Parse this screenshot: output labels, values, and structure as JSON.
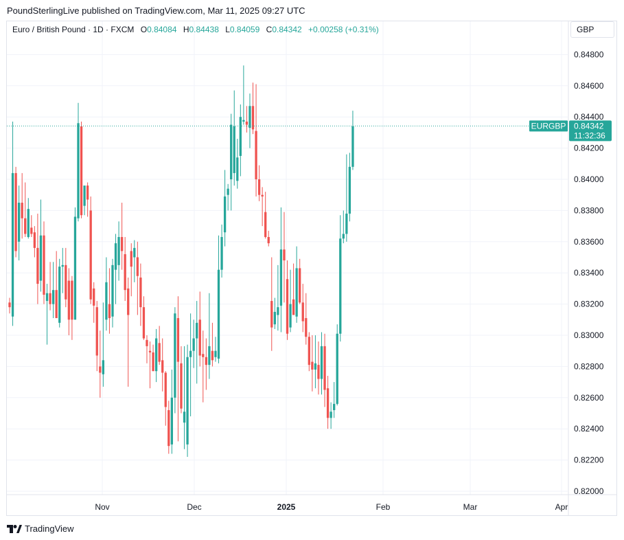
{
  "header": {
    "publisher": "PoundSterlingLive published on TradingView.com, Mar 11, 2025 09:27 UTC"
  },
  "legend": {
    "symbol": "Euro / British Pound · 1D · FXCM",
    "open_label": "O",
    "open": "0.84084",
    "high_label": "H",
    "high": "0.84438",
    "low_label": "L",
    "low": "0.84059",
    "close_label": "C",
    "close": "0.84342",
    "change": "+0.00258 (+0.31%)"
  },
  "currency_button": "GBP",
  "price_tag": {
    "symbol": "EURGBP",
    "price": "0.84342",
    "countdown": "11:32:36"
  },
  "branding": {
    "name": "TradingView",
    "logo_icon": "tradingview-logo-icon"
  },
  "colors": {
    "up": "#26a69a",
    "down": "#ef5350",
    "grid": "#f0f3fa",
    "text": "#131722"
  },
  "chart_data": {
    "type": "candlestick",
    "title": "Euro / British Pound · 1D · FXCM",
    "y_axis_side": "right",
    "ylim": [
      0.8195,
      0.8495
    ],
    "y_ticks": [
      "0.84800",
      "0.84600",
      "0.84400",
      "0.84200",
      "0.84000",
      "0.83800",
      "0.83600",
      "0.83400",
      "0.83200",
      "0.83000",
      "0.82800",
      "0.82600",
      "0.82400",
      "0.82200",
      "0.82000"
    ],
    "x_ticks": [
      {
        "label": "Nov",
        "bold": false
      },
      {
        "label": "Dec",
        "bold": false
      },
      {
        "label": "2025",
        "bold": true
      },
      {
        "label": "Feb",
        "bold": false
      },
      {
        "label": "Mar",
        "bold": false
      },
      {
        "label": "Apr",
        "bold": false
      }
    ],
    "last_price": 0.84342,
    "candles": [
      {
        "o": 0.8321,
        "h": 0.8324,
        "l": 0.8314,
        "c": 0.8318
      },
      {
        "o": 0.8312,
        "h": 0.8437,
        "l": 0.8306,
        "c": 0.8404
      },
      {
        "o": 0.8404,
        "h": 0.8408,
        "l": 0.835,
        "c": 0.8354
      },
      {
        "o": 0.836,
        "h": 0.8396,
        "l": 0.8348,
        "c": 0.8385
      },
      {
        "o": 0.8385,
        "h": 0.8404,
        "l": 0.8362,
        "c": 0.8375
      },
      {
        "o": 0.8375,
        "h": 0.8398,
        "l": 0.8363,
        "c": 0.8365
      },
      {
        "o": 0.8363,
        "h": 0.8388,
        "l": 0.8362,
        "c": 0.8381
      },
      {
        "o": 0.8369,
        "h": 0.8377,
        "l": 0.8363,
        "c": 0.8365
      },
      {
        "o": 0.8366,
        "h": 0.837,
        "l": 0.835,
        "c": 0.8356
      },
      {
        "o": 0.8356,
        "h": 0.8378,
        "l": 0.832,
        "c": 0.8333
      },
      {
        "o": 0.8335,
        "h": 0.8387,
        "l": 0.8328,
        "c": 0.8364
      },
      {
        "o": 0.8364,
        "h": 0.8373,
        "l": 0.832,
        "c": 0.8326
      },
      {
        "o": 0.8322,
        "h": 0.8333,
        "l": 0.8294,
        "c": 0.8327
      },
      {
        "o": 0.8327,
        "h": 0.8347,
        "l": 0.8316,
        "c": 0.832
      },
      {
        "o": 0.832,
        "h": 0.8347,
        "l": 0.8311,
        "c": 0.8329
      },
      {
        "o": 0.8329,
        "h": 0.8354,
        "l": 0.8311,
        "c": 0.8311
      },
      {
        "o": 0.8308,
        "h": 0.8349,
        "l": 0.8305,
        "c": 0.8344
      },
      {
        "o": 0.8344,
        "h": 0.8356,
        "l": 0.8327,
        "c": 0.8345
      },
      {
        "o": 0.8345,
        "h": 0.8356,
        "l": 0.8318,
        "c": 0.8323
      },
      {
        "o": 0.8335,
        "h": 0.8343,
        "l": 0.83,
        "c": 0.831
      },
      {
        "o": 0.8335,
        "h": 0.8338,
        "l": 0.8297,
        "c": 0.831
      },
      {
        "o": 0.831,
        "h": 0.8382,
        "l": 0.831,
        "c": 0.8376
      },
      {
        "o": 0.8375,
        "h": 0.8449,
        "l": 0.8373,
        "c": 0.8436
      },
      {
        "o": 0.8434,
        "h": 0.8437,
        "l": 0.8375,
        "c": 0.8377
      },
      {
        "o": 0.8383,
        "h": 0.8393,
        "l": 0.8377,
        "c": 0.8396
      },
      {
        "o": 0.8396,
        "h": 0.8398,
        "l": 0.8376,
        "c": 0.8387
      },
      {
        "o": 0.838,
        "h": 0.8389,
        "l": 0.832,
        "c": 0.8323
      },
      {
        "o": 0.833,
        "h": 0.8334,
        "l": 0.8308,
        "c": 0.8319
      },
      {
        "o": 0.8318,
        "h": 0.8322,
        "l": 0.8277,
        "c": 0.8287
      },
      {
        "o": 0.828,
        "h": 0.8303,
        "l": 0.826,
        "c": 0.8276
      },
      {
        "o": 0.8275,
        "h": 0.8321,
        "l": 0.8267,
        "c": 0.8284
      },
      {
        "o": 0.831,
        "h": 0.835,
        "l": 0.8303,
        "c": 0.8334
      },
      {
        "o": 0.832,
        "h": 0.8343,
        "l": 0.8301,
        "c": 0.8311
      },
      {
        "o": 0.8312,
        "h": 0.8349,
        "l": 0.8305,
        "c": 0.8345
      },
      {
        "o": 0.8342,
        "h": 0.8365,
        "l": 0.832,
        "c": 0.8359
      },
      {
        "o": 0.8345,
        "h": 0.8373,
        "l": 0.8335,
        "c": 0.8363
      },
      {
        "o": 0.8363,
        "h": 0.8385,
        "l": 0.8342,
        "c": 0.8354
      },
      {
        "o": 0.8352,
        "h": 0.8363,
        "l": 0.8322,
        "c": 0.8329
      },
      {
        "o": 0.833,
        "h": 0.8337,
        "l": 0.8267,
        "c": 0.8313
      },
      {
        "o": 0.8354,
        "h": 0.8359,
        "l": 0.8325,
        "c": 0.8344
      },
      {
        "o": 0.835,
        "h": 0.8361,
        "l": 0.8334,
        "c": 0.8356
      },
      {
        "o": 0.835,
        "h": 0.836,
        "l": 0.8313,
        "c": 0.8338
      },
      {
        "o": 0.8337,
        "h": 0.8346,
        "l": 0.8306,
        "c": 0.8318
      },
      {
        "o": 0.8318,
        "h": 0.8325,
        "l": 0.8297,
        "c": 0.8298
      },
      {
        "o": 0.8297,
        "h": 0.83,
        "l": 0.8282,
        "c": 0.8293
      },
      {
        "o": 0.829,
        "h": 0.8296,
        "l": 0.8266,
        "c": 0.8289
      },
      {
        "o": 0.8289,
        "h": 0.8294,
        "l": 0.8277,
        "c": 0.8277
      },
      {
        "o": 0.8277,
        "h": 0.8304,
        "l": 0.827,
        "c": 0.8298
      },
      {
        "o": 0.8295,
        "h": 0.8306,
        "l": 0.8281,
        "c": 0.8283
      },
      {
        "o": 0.8284,
        "h": 0.8298,
        "l": 0.8264,
        "c": 0.8276
      },
      {
        "o": 0.8276,
        "h": 0.8277,
        "l": 0.8242,
        "c": 0.8254
      },
      {
        "o": 0.8252,
        "h": 0.8258,
        "l": 0.8224,
        "c": 0.8229
      },
      {
        "o": 0.823,
        "h": 0.8278,
        "l": 0.8224,
        "c": 0.826
      },
      {
        "o": 0.826,
        "h": 0.8318,
        "l": 0.825,
        "c": 0.8314
      },
      {
        "o": 0.8311,
        "h": 0.8325,
        "l": 0.8232,
        "c": 0.8283
      },
      {
        "o": 0.8282,
        "h": 0.8293,
        "l": 0.825,
        "c": 0.8253
      },
      {
        "o": 0.8244,
        "h": 0.8293,
        "l": 0.8227,
        "c": 0.8251
      },
      {
        "o": 0.823,
        "h": 0.8294,
        "l": 0.8222,
        "c": 0.8286
      },
      {
        "o": 0.8286,
        "h": 0.8314,
        "l": 0.8248,
        "c": 0.829
      },
      {
        "o": 0.829,
        "h": 0.831,
        "l": 0.8279,
        "c": 0.8298
      },
      {
        "o": 0.8298,
        "h": 0.8322,
        "l": 0.8269,
        "c": 0.8308
      },
      {
        "o": 0.831,
        "h": 0.8328,
        "l": 0.828,
        "c": 0.8287
      },
      {
        "o": 0.8288,
        "h": 0.8303,
        "l": 0.8257,
        "c": 0.8286
      },
      {
        "o": 0.8286,
        "h": 0.8298,
        "l": 0.8265,
        "c": 0.8281
      },
      {
        "o": 0.8281,
        "h": 0.8327,
        "l": 0.8272,
        "c": 0.8293
      },
      {
        "o": 0.829,
        "h": 0.8308,
        "l": 0.828,
        "c": 0.8284
      },
      {
        "o": 0.8286,
        "h": 0.8299,
        "l": 0.8283,
        "c": 0.829
      },
      {
        "o": 0.8285,
        "h": 0.8364,
        "l": 0.8282,
        "c": 0.8342
      },
      {
        "o": 0.8342,
        "h": 0.8371,
        "l": 0.8337,
        "c": 0.8363
      },
      {
        "o": 0.8366,
        "h": 0.8406,
        "l": 0.8357,
        "c": 0.8389
      },
      {
        "o": 0.839,
        "h": 0.8397,
        "l": 0.838,
        "c": 0.8394
      },
      {
        "o": 0.84,
        "h": 0.8442,
        "l": 0.838,
        "c": 0.8435
      },
      {
        "o": 0.8404,
        "h": 0.8457,
        "l": 0.8396,
        "c": 0.8434
      },
      {
        "o": 0.8399,
        "h": 0.8426,
        "l": 0.8394,
        "c": 0.8414
      },
      {
        "o": 0.8415,
        "h": 0.8448,
        "l": 0.8402,
        "c": 0.844
      },
      {
        "o": 0.8437,
        "h": 0.8473,
        "l": 0.8435,
        "c": 0.8438
      },
      {
        "o": 0.8437,
        "h": 0.8447,
        "l": 0.843,
        "c": 0.8435
      },
      {
        "o": 0.8433,
        "h": 0.8455,
        "l": 0.842,
        "c": 0.8447
      },
      {
        "o": 0.8447,
        "h": 0.8462,
        "l": 0.8429,
        "c": 0.8432
      },
      {
        "o": 0.8431,
        "h": 0.8461,
        "l": 0.8389,
        "c": 0.84
      },
      {
        "o": 0.84,
        "h": 0.8409,
        "l": 0.8386,
        "c": 0.839
      },
      {
        "o": 0.839,
        "h": 0.8395,
        "l": 0.837,
        "c": 0.8389
      },
      {
        "o": 0.8379,
        "h": 0.8392,
        "l": 0.8362,
        "c": 0.8363
      },
      {
        "o": 0.8363,
        "h": 0.8367,
        "l": 0.8357,
        "c": 0.8359
      },
      {
        "o": 0.8322,
        "h": 0.835,
        "l": 0.829,
        "c": 0.8305
      },
      {
        "o": 0.8307,
        "h": 0.8324,
        "l": 0.8304,
        "c": 0.8315
      },
      {
        "o": 0.8313,
        "h": 0.8345,
        "l": 0.8303,
        "c": 0.8318
      },
      {
        "o": 0.8319,
        "h": 0.8382,
        "l": 0.8302,
        "c": 0.8355
      },
      {
        "o": 0.8355,
        "h": 0.8379,
        "l": 0.8321,
        "c": 0.8348
      },
      {
        "o": 0.8336,
        "h": 0.8348,
        "l": 0.8297,
        "c": 0.8301
      },
      {
        "o": 0.8305,
        "h": 0.8342,
        "l": 0.8302,
        "c": 0.832
      },
      {
        "o": 0.8323,
        "h": 0.8346,
        "l": 0.8314,
        "c": 0.8313
      },
      {
        "o": 0.8312,
        "h": 0.8357,
        "l": 0.8308,
        "c": 0.8343
      },
      {
        "o": 0.8343,
        "h": 0.8349,
        "l": 0.832,
        "c": 0.8321
      },
      {
        "o": 0.8321,
        "h": 0.8333,
        "l": 0.8302,
        "c": 0.8309
      },
      {
        "o": 0.8311,
        "h": 0.8327,
        "l": 0.8294,
        "c": 0.8299
      },
      {
        "o": 0.8299,
        "h": 0.8302,
        "l": 0.8277,
        "c": 0.8281
      },
      {
        "o": 0.8283,
        "h": 0.83,
        "l": 0.8264,
        "c": 0.8278
      },
      {
        "o": 0.8278,
        "h": 0.83,
        "l": 0.8266,
        "c": 0.8282
      },
      {
        "o": 0.8281,
        "h": 0.8296,
        "l": 0.8262,
        "c": 0.8272
      },
      {
        "o": 0.8272,
        "h": 0.8302,
        "l": 0.8262,
        "c": 0.8293
      },
      {
        "o": 0.8293,
        "h": 0.8301,
        "l": 0.8254,
        "c": 0.8265
      },
      {
        "o": 0.8266,
        "h": 0.8274,
        "l": 0.824,
        "c": 0.8247
      },
      {
        "o": 0.8247,
        "h": 0.8257,
        "l": 0.824,
        "c": 0.8251
      },
      {
        "o": 0.8252,
        "h": 0.827,
        "l": 0.8247,
        "c": 0.8256
      },
      {
        "o": 0.8256,
        "h": 0.8307,
        "l": 0.8255,
        "c": 0.8301
      },
      {
        "o": 0.8301,
        "h": 0.8377,
        "l": 0.8296,
        "c": 0.8362
      },
      {
        "o": 0.8362,
        "h": 0.838,
        "l": 0.8359,
        "c": 0.8365
      },
      {
        "o": 0.8365,
        "h": 0.8416,
        "l": 0.836,
        "c": 0.8378
      },
      {
        "o": 0.8378,
        "h": 0.8417,
        "l": 0.8373,
        "c": 0.8408
      },
      {
        "o": 0.8408,
        "h": 0.8444,
        "l": 0.8406,
        "c": 0.8434
      }
    ]
  }
}
